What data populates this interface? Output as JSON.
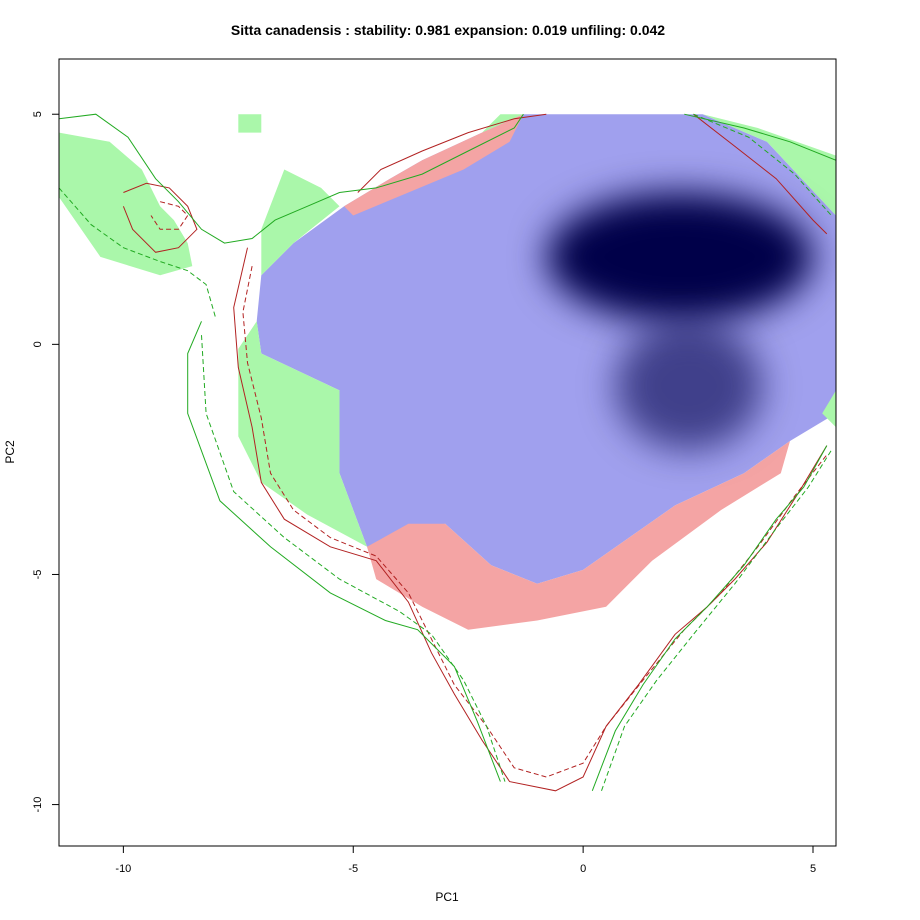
{
  "chart_data": {
    "type": "heatmap",
    "title": "Sitta canadensis : stability: 0.981 expansion: 0.019 unfiling: 0.042",
    "xlabel": "PC1",
    "ylabel": "PC2",
    "xlim": [
      -11.4,
      5.5
    ],
    "ylim": [
      -10.9,
      6.2
    ],
    "x_ticks": [
      -10,
      -5,
      0,
      5
    ],
    "x_tick_labels": [
      "-10",
      "-5",
      "0",
      "5"
    ],
    "y_ticks": [
      5,
      0,
      -5,
      -10
    ],
    "y_tick_labels": [
      "5",
      "0",
      "-5",
      "-10"
    ],
    "grid": false,
    "legend": "none",
    "colors": {
      "stability": "#a0a0ee",
      "expansion": "#aaf7aa",
      "unfilling": "#f4a4a4",
      "density_peak": "#00004a",
      "native_contour": "#b22222",
      "invaded_contour": "#22aa22"
    },
    "layers": [
      {
        "name": "stability",
        "color": "#a0a0ee",
        "polygon": [
          [
            -7,
            1.5
          ],
          [
            -6.3,
            2.2
          ],
          [
            -5.2,
            3
          ],
          [
            -4.2,
            3.6
          ],
          [
            -3.5,
            4
          ],
          [
            -2.2,
            4.6
          ],
          [
            -1.3,
            5
          ],
          [
            2.6,
            5
          ],
          [
            4,
            4.4
          ],
          [
            5.5,
            2.8
          ],
          [
            5.5,
            -1.5
          ],
          [
            4.5,
            -2.1
          ],
          [
            3.5,
            -2.8
          ],
          [
            2,
            -3.5
          ],
          [
            1,
            -4.2
          ],
          [
            0,
            -4.9
          ],
          [
            -1,
            -5.2
          ],
          [
            -2,
            -4.8
          ],
          [
            -3,
            -3.9
          ],
          [
            -4.7,
            -4.4
          ],
          [
            -5.3,
            -2.8
          ],
          [
            -5.3,
            -1
          ],
          [
            -7,
            -0.2
          ],
          [
            -7.1,
            0.5
          ]
        ]
      },
      {
        "name": "expansion",
        "color": "#aaf7aa",
        "polygon": [
          [
            -11.4,
            4.6
          ],
          [
            -10.3,
            4.4
          ],
          [
            -9.6,
            3.8
          ],
          [
            -9.2,
            3
          ],
          [
            -8.9,
            2.7
          ],
          [
            -8.6,
            2.2
          ],
          [
            -8.5,
            1.7
          ],
          [
            -9.2,
            1.5
          ],
          [
            -10.5,
            1.9
          ],
          [
            -11.4,
            3.2
          ]
        ]
      },
      {
        "name": "expansion",
        "color": "#aaf7aa",
        "polygon": [
          [
            -7,
            2.5
          ],
          [
            -6.5,
            3.8
          ],
          [
            -5.7,
            3.4
          ],
          [
            -5.3,
            3
          ],
          [
            -6.3,
            2.2
          ],
          [
            -7,
            1.5
          ]
        ]
      },
      {
        "name": "expansion",
        "color": "#aaf7aa",
        "polygon": [
          [
            -7.1,
            0.5
          ],
          [
            -7.5,
            -0.1
          ],
          [
            -7.5,
            -2
          ],
          [
            -7,
            -3
          ],
          [
            -6,
            -3.7
          ],
          [
            -4.7,
            -4.4
          ],
          [
            -5.3,
            -2.8
          ],
          [
            -5.3,
            -1
          ],
          [
            -7,
            -0.2
          ]
        ]
      },
      {
        "name": "expansion",
        "color": "#aaf7aa",
        "polygon": [
          [
            -1.8,
            5
          ],
          [
            -1.3,
            5
          ],
          [
            -2.2,
            4.6
          ],
          [
            -2,
            4.8
          ]
        ]
      },
      {
        "name": "expansion",
        "color": "#aaf7aa",
        "polygon": [
          [
            2.6,
            5
          ],
          [
            3.8,
            4.7
          ],
          [
            5.5,
            4.1
          ],
          [
            5.5,
            2.8
          ],
          [
            4,
            4.4
          ]
        ]
      },
      {
        "name": "expansion",
        "color": "#aaf7aa",
        "polygon": [
          [
            5.5,
            -1
          ],
          [
            5.2,
            -1.5
          ],
          [
            5.5,
            -1.8
          ]
        ]
      },
      {
        "name": "expansion",
        "color": "#aaf7aa",
        "polygon": [
          [
            -7.5,
            5
          ],
          [
            -7,
            5
          ],
          [
            -7,
            4.6
          ],
          [
            -7.5,
            4.6
          ]
        ]
      },
      {
        "name": "unfilling",
        "color": "#f4a4a4",
        "polygon": [
          [
            -5.2,
            3
          ],
          [
            -4.2,
            3.6
          ],
          [
            -3.5,
            4
          ],
          [
            -2.2,
            4.6
          ],
          [
            -1.3,
            5
          ],
          [
            -1.6,
            4.4
          ],
          [
            -2.6,
            3.8
          ],
          [
            -3.8,
            3.3
          ],
          [
            -5,
            2.8
          ]
        ]
      },
      {
        "name": "unfilling",
        "color": "#f4a4a4",
        "polygon": [
          [
            -4.7,
            -4.4
          ],
          [
            -3.8,
            -3.9
          ],
          [
            -3,
            -3.9
          ],
          [
            -2,
            -4.8
          ],
          [
            -1,
            -5.2
          ],
          [
            0,
            -4.9
          ],
          [
            1,
            -4.2
          ],
          [
            2,
            -3.5
          ],
          [
            3.5,
            -2.8
          ],
          [
            4.5,
            -2.1
          ],
          [
            4.3,
            -2.8
          ],
          [
            3,
            -3.6
          ],
          [
            1.5,
            -4.7
          ],
          [
            0.5,
            -5.7
          ],
          [
            -1,
            -6
          ],
          [
            -2.5,
            -6.2
          ],
          [
            -3.5,
            -5.7
          ],
          [
            -4.5,
            -5.1
          ]
        ]
      }
    ],
    "density_peaks": [
      {
        "x": 2.1,
        "y": 1.9,
        "rx": 2.9,
        "ry": 1.4,
        "intensity": 1.0
      },
      {
        "x": 2.3,
        "y": -0.9,
        "rx": 1.6,
        "ry": 1.4,
        "intensity": 0.6
      }
    ],
    "contours": [
      {
        "name": "native",
        "style": "solid",
        "color": "#b22222",
        "points": [
          [
            -7.3,
            2.1
          ],
          [
            -7.6,
            0.8
          ],
          [
            -7.5,
            -0.5
          ],
          [
            -7.2,
            -1.8
          ],
          [
            -7,
            -3
          ],
          [
            -6.5,
            -3.8
          ],
          [
            -5.5,
            -4.4
          ],
          [
            -4.5,
            -4.7
          ],
          [
            -3.8,
            -5.6
          ],
          [
            -3.3,
            -6.7
          ],
          [
            -2.8,
            -7.6
          ],
          [
            -2.2,
            -8.6
          ],
          [
            -1.6,
            -9.5
          ],
          [
            -0.6,
            -9.7
          ],
          [
            0,
            -9.4
          ],
          [
            0.5,
            -8.3
          ],
          [
            1.2,
            -7.4
          ],
          [
            2,
            -6.3
          ],
          [
            2.7,
            -5.7
          ],
          [
            3.3,
            -5.1
          ],
          [
            4,
            -4.3
          ],
          [
            4.7,
            -3.2
          ],
          [
            5.3,
            -2.2
          ]
        ]
      },
      {
        "name": "native",
        "style": "dashed",
        "color": "#b22222",
        "points": [
          [
            -7.2,
            1.7
          ],
          [
            -7.4,
            0.7
          ],
          [
            -7.3,
            -0.4
          ],
          [
            -7,
            -1.6
          ],
          [
            -6.8,
            -2.8
          ],
          [
            -6.3,
            -3.6
          ],
          [
            -5.5,
            -4.2
          ],
          [
            -4.5,
            -4.6
          ],
          [
            -3.8,
            -5.4
          ],
          [
            -3.3,
            -6.4
          ],
          [
            -2.8,
            -7.4
          ],
          [
            -2.1,
            -8.3
          ],
          [
            -1.5,
            -9.2
          ],
          [
            -0.8,
            -9.4
          ],
          [
            0,
            -9.1
          ],
          [
            0.5,
            -8.3
          ],
          [
            1.3,
            -7.3
          ],
          [
            2.2,
            -6.2
          ],
          [
            3,
            -5.4
          ],
          [
            3.8,
            -4.4
          ],
          [
            4.6,
            -3.3
          ],
          [
            5.3,
            -2.4
          ]
        ]
      },
      {
        "name": "native",
        "style": "solid",
        "color": "#b22222",
        "points": [
          [
            -10,
            3.3
          ],
          [
            -9.5,
            3.5
          ],
          [
            -9,
            3.4
          ],
          [
            -8.6,
            3
          ],
          [
            -8.4,
            2.5
          ],
          [
            -8.8,
            2.1
          ],
          [
            -9.3,
            2
          ],
          [
            -9.8,
            2.5
          ],
          [
            -10,
            3
          ]
        ]
      },
      {
        "name": "native",
        "style": "dashed",
        "color": "#b22222",
        "points": [
          [
            -9.2,
            3.1
          ],
          [
            -8.8,
            3
          ],
          [
            -8.6,
            2.8
          ],
          [
            -8.8,
            2.5
          ],
          [
            -9.2,
            2.5
          ],
          [
            -9.4,
            2.8
          ]
        ]
      },
      {
        "name": "native",
        "style": "solid",
        "color": "#b22222",
        "points": [
          [
            -4.9,
            3.3
          ],
          [
            -4.4,
            3.8
          ],
          [
            -3.5,
            4.2
          ],
          [
            -2.5,
            4.6
          ],
          [
            -1.5,
            4.9
          ],
          [
            -0.8,
            5
          ]
        ]
      },
      {
        "name": "native",
        "style": "solid",
        "color": "#b22222",
        "points": [
          [
            2.4,
            5
          ],
          [
            3.3,
            4.3
          ],
          [
            4.2,
            3.6
          ],
          [
            5,
            2.7
          ],
          [
            5.3,
            2.4
          ]
        ]
      },
      {
        "name": "invaded",
        "style": "solid",
        "color": "#22aa22",
        "points": [
          [
            -11.4,
            4.9
          ],
          [
            -10.6,
            5
          ],
          [
            -9.9,
            4.5
          ],
          [
            -9.3,
            3.6
          ],
          [
            -8.8,
            3.1
          ],
          [
            -8.3,
            2.5
          ],
          [
            -7.8,
            2.2
          ],
          [
            -7.2,
            2.3
          ],
          [
            -6.7,
            2.7
          ],
          [
            -6,
            3
          ],
          [
            -5.3,
            3.3
          ],
          [
            -4.5,
            3.4
          ],
          [
            -3.5,
            3.7
          ],
          [
            -2.5,
            4.2
          ],
          [
            -1.5,
            4.7
          ],
          [
            -1.3,
            5
          ]
        ]
      },
      {
        "name": "invaded",
        "style": "dashed",
        "color": "#22aa22",
        "points": [
          [
            -11.4,
            3.4
          ],
          [
            -10.7,
            2.6
          ],
          [
            -10,
            2.1
          ],
          [
            -9.2,
            1.8
          ],
          [
            -8.6,
            1.6
          ],
          [
            -8.2,
            1.3
          ],
          [
            -8,
            0.6
          ]
        ]
      },
      {
        "name": "invaded",
        "style": "solid",
        "color": "#22aa22",
        "points": [
          [
            -8.3,
            0.5
          ],
          [
            -8.6,
            -0.2
          ],
          [
            -8.6,
            -1.5
          ],
          [
            -7.9,
            -3.4
          ],
          [
            -6.8,
            -4.4
          ],
          [
            -5.5,
            -5.4
          ],
          [
            -4.3,
            -6
          ],
          [
            -3.6,
            -6.2
          ],
          [
            -2.8,
            -7
          ],
          [
            -2.3,
            -8.2
          ],
          [
            -1.8,
            -9.5
          ]
        ]
      },
      {
        "name": "invaded",
        "style": "dashed",
        "color": "#22aa22",
        "points": [
          [
            -8.3,
            0.2
          ],
          [
            -8.2,
            -1.5
          ],
          [
            -7.6,
            -3.2
          ],
          [
            -6.5,
            -4.2
          ],
          [
            -5.3,
            -5.1
          ],
          [
            -4,
            -5.8
          ],
          [
            -3.3,
            -6.3
          ],
          [
            -2.6,
            -7.3
          ],
          [
            -2.1,
            -8.3
          ],
          [
            -1.7,
            -9.5
          ]
        ]
      },
      {
        "name": "invaded",
        "style": "solid",
        "color": "#22aa22",
        "points": [
          [
            0.2,
            -9.7
          ],
          [
            0.7,
            -8.4
          ],
          [
            1.3,
            -7.4
          ],
          [
            2,
            -6.4
          ],
          [
            2.7,
            -5.7
          ],
          [
            3.5,
            -4.8
          ],
          [
            4.2,
            -3.8
          ],
          [
            4.8,
            -3.1
          ],
          [
            5.3,
            -2.2
          ]
        ]
      },
      {
        "name": "invaded",
        "style": "dashed",
        "color": "#22aa22",
        "points": [
          [
            0.4,
            -9.7
          ],
          [
            0.9,
            -8.3
          ],
          [
            1.6,
            -7.3
          ],
          [
            2.4,
            -6.3
          ],
          [
            3.3,
            -5.2
          ],
          [
            4.2,
            -4
          ],
          [
            4.9,
            -3.1
          ],
          [
            5.4,
            -2.3
          ]
        ]
      },
      {
        "name": "invaded",
        "style": "solid",
        "color": "#22aa22",
        "points": [
          [
            2.2,
            5
          ],
          [
            3.5,
            4.7
          ],
          [
            4.5,
            4.4
          ],
          [
            5.5,
            4
          ]
        ]
      },
      {
        "name": "invaded",
        "style": "dashed",
        "color": "#22aa22",
        "points": [
          [
            2.4,
            5
          ],
          [
            3.6,
            4.5
          ],
          [
            4.6,
            3.7
          ],
          [
            5.4,
            2.8
          ]
        ]
      }
    ]
  }
}
